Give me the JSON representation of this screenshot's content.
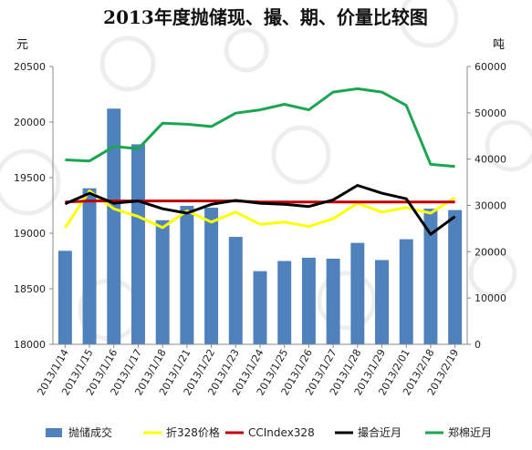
{
  "chart_data": {
    "type": "bar+line",
    "title": "2013年度抛储现、撮、期、价量比较图",
    "ylabel_left": "元",
    "ylabel_right": "吨",
    "categories": [
      "2013/1/14",
      "2013/1/15",
      "2013/1/16",
      "2013/1/17",
      "2013/1/18",
      "2013/1/21",
      "2013/1/22",
      "2013/1/23",
      "2013/1/24",
      "2013/1/25",
      "2013/1/26",
      "2013/1/27",
      "2013/1/28",
      "2013/1/29",
      "2013/2/01",
      "2013/2/18",
      "2013/2/19"
    ],
    "ylim_left": [
      18000,
      20500
    ],
    "ylim_right": [
      0,
      60000
    ],
    "yticks_left": [
      "20500",
      "20000",
      "19500",
      "19000",
      "18500",
      "18000"
    ],
    "yticks_right": [
      "60000",
      "50000",
      "40000",
      "30000",
      "20000",
      "10000",
      "0"
    ],
    "grid": false,
    "legend_position": "bottom",
    "series": [
      {
        "name": "抛储成交",
        "kind": "bar",
        "axis": "right",
        "color": "#4f81bd",
        "values": [
          20200,
          33700,
          50900,
          43200,
          26800,
          29900,
          29500,
          23200,
          15800,
          18000,
          18700,
          18500,
          21900,
          18200,
          22700,
          29300,
          29000
        ]
      },
      {
        "name": "折328价格",
        "kind": "line",
        "axis": "left",
        "color": "#ffff00",
        "values": [
          19050,
          19380,
          19220,
          19150,
          19050,
          19200,
          19100,
          19190,
          19080,
          19100,
          19060,
          19130,
          19270,
          19190,
          19230,
          19180,
          19320
        ]
      },
      {
        "name": "CCIndex328",
        "kind": "line",
        "axis": "left",
        "color": "#c00000",
        "values": [
          19280,
          19290,
          19290,
          19290,
          19290,
          19290,
          19290,
          19290,
          19280,
          19280,
          19280,
          19280,
          19280,
          19280,
          19280,
          19280,
          19280
        ]
      },
      {
        "name": "撮合近月",
        "kind": "line",
        "axis": "left",
        "color": "#000000",
        "values": [
          19265,
          19360,
          19270,
          19290,
          19220,
          19180,
          19260,
          19295,
          19270,
          19260,
          19240,
          19300,
          19430,
          19360,
          19310,
          18990,
          19150
        ]
      },
      {
        "name": "郑棉近月",
        "kind": "line",
        "axis": "left",
        "color": "#1aa650",
        "values": [
          19660,
          19650,
          19780,
          19760,
          19990,
          19980,
          19960,
          20080,
          20110,
          20160,
          20110,
          20270,
          20300,
          20270,
          20150,
          19620,
          19600
        ]
      }
    ]
  }
}
